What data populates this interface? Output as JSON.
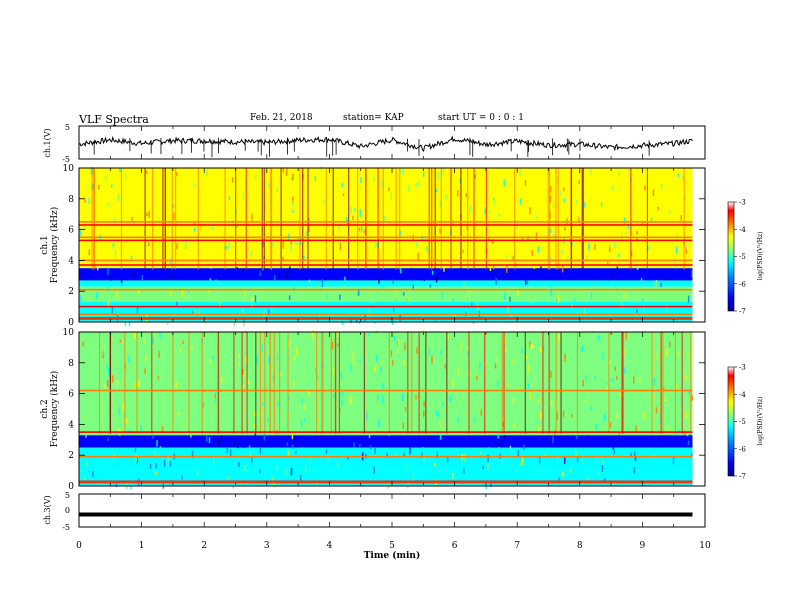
{
  "header": {
    "title": "VLF Spectra",
    "date": "Feb. 21, 2018",
    "station": "station= KAP",
    "start_time": "start  UT =   0 : 0  : 1"
  },
  "colors": {
    "colormap": [
      "#00008f",
      "#0000ff",
      "#007fff",
      "#00ffff",
      "#7fff7f",
      "#ffff00",
      "#ff7f00",
      "#ff0000",
      "#7f0000"
    ],
    "waveform": "#000000"
  },
  "chart_data": [
    {
      "type": "line",
      "panel": "waveform-ch1",
      "ylabel": "ch.1(V)",
      "ylim": [
        -5,
        5
      ],
      "yticks": [
        "5",
        "-5"
      ],
      "x": [
        0,
        0.5,
        1,
        1.5,
        2,
        2.5,
        3,
        3.5,
        4,
        4.5,
        5,
        5.5,
        6,
        6.5,
        7,
        7.5,
        8,
        8.5,
        9,
        9.5,
        9.8
      ],
      "y": [
        -0.5,
        0.8,
        -0.3,
        0.6,
        0.5,
        0.2,
        0.0,
        0.7,
        1.0,
        -1.2,
        0.8,
        -1.8,
        1.2,
        -0.6,
        0.4,
        -0.8,
        -0.5,
        -1.5,
        -0.9,
        -0.3,
        0.5
      ]
    },
    {
      "type": "heatmap",
      "panel": "spectrogram-ch1",
      "ylabel": "ch.1\nFrequency (kHz)",
      "xlim": [
        0,
        10
      ],
      "ylim": [
        0,
        10
      ],
      "yticks": [
        "0",
        "2",
        "4",
        "6",
        "8",
        "10"
      ],
      "colorbar": {
        "label": "log(PSD)(V²/Hz)",
        "range": [
          -7,
          -3
        ],
        "ticks": [
          "-3",
          "-4",
          "-5",
          "-6",
          "-7"
        ]
      },
      "data_end_min": 9.8,
      "bands": [
        {
          "freq_khz": [
            0.0,
            1.3
          ],
          "level": -5.4
        },
        {
          "freq_khz": [
            1.3,
            2.3
          ],
          "level": -5.2
        },
        {
          "freq_khz": [
            2.3,
            2.7
          ],
          "level": -5.6
        },
        {
          "freq_khz": [
            2.7,
            3.5
          ],
          "level": -6.4
        },
        {
          "freq_khz": [
            3.5,
            10.0
          ],
          "level": -4.7
        }
      ],
      "lines_khz": [
        0.2,
        0.5,
        1.0,
        2.1,
        3.7,
        4.0,
        5.3,
        5.5,
        6.3,
        6.5
      ]
    },
    {
      "type": "heatmap",
      "panel": "spectrogram-ch2",
      "ylabel": "ch.2\nFrequency (kHz)",
      "xlim": [
        0,
        10
      ],
      "ylim": [
        0,
        10
      ],
      "yticks": [
        "0",
        "2",
        "4",
        "6",
        "8",
        "10"
      ],
      "colorbar": {
        "label": "log(PSD)(V²/Hz)",
        "range": [
          -7,
          -3
        ],
        "ticks": [
          "-3",
          "-4",
          "-5",
          "-6",
          "-7"
        ]
      },
      "data_end_min": 9.8,
      "bands": [
        {
          "freq_khz": [
            0.0,
            1.0
          ],
          "level": -5.4
        },
        {
          "freq_khz": [
            1.0,
            2.5
          ],
          "level": -5.5
        },
        {
          "freq_khz": [
            2.5,
            3.3
          ],
          "level": -6.4
        },
        {
          "freq_khz": [
            3.3,
            10.0
          ],
          "level": -4.8
        }
      ],
      "lines_khz": [
        0.3,
        1.9,
        3.5,
        6.2
      ]
    },
    {
      "type": "line",
      "panel": "waveform-ch3",
      "ylabel": "ch.3(V)",
      "ylim": [
        -5,
        5
      ],
      "yticks": [
        "5",
        "0",
        "-5"
      ],
      "x": [
        0,
        9.8
      ],
      "y": [
        -1.2,
        -1.2
      ]
    }
  ],
  "xaxis": {
    "label": "Time (min)",
    "ticks": [
      "0",
      "1",
      "2",
      "3",
      "4",
      "5",
      "6",
      "7",
      "8",
      "9",
      "10"
    ]
  }
}
